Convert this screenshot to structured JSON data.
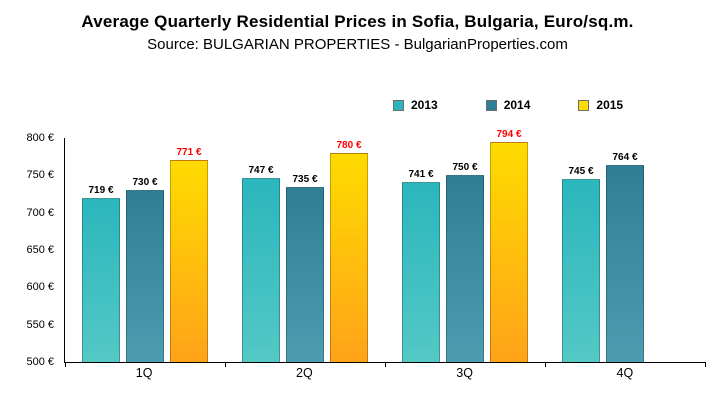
{
  "header": {
    "title": "Average Quarterly Residential Prices in Sofia, Bulgaria, Euro/sq.m.",
    "subtitle": "Source: BULGARIAN PROPERTIES - BulgarianProperties.com"
  },
  "chart_data": {
    "type": "bar",
    "categories": [
      "1Q",
      "2Q",
      "3Q",
      "4Q"
    ],
    "series": [
      {
        "name": "2013",
        "values": [
          719,
          747,
          741,
          745
        ],
        "color_top": "#2bb6bd",
        "color_bottom": "#54c8c5",
        "label_color": "#000000"
      },
      {
        "name": "2014",
        "values": [
          730,
          735,
          750,
          764
        ],
        "color_top": "#2e7f96",
        "color_bottom": "#4d9cb0",
        "label_color": "#000000"
      },
      {
        "name": "2015",
        "values": [
          771,
          780,
          794,
          null
        ],
        "color_top": "#ffdb00",
        "color_bottom": "#ffa319",
        "label_color": "#ff0000"
      }
    ],
    "ylim": [
      500,
      800
    ],
    "yticks": [
      800,
      750,
      700,
      650,
      600,
      550,
      500
    ],
    "ytick_suffix": " €",
    "value_suffix": " €",
    "legend_position": "top-right",
    "grid": false
  }
}
